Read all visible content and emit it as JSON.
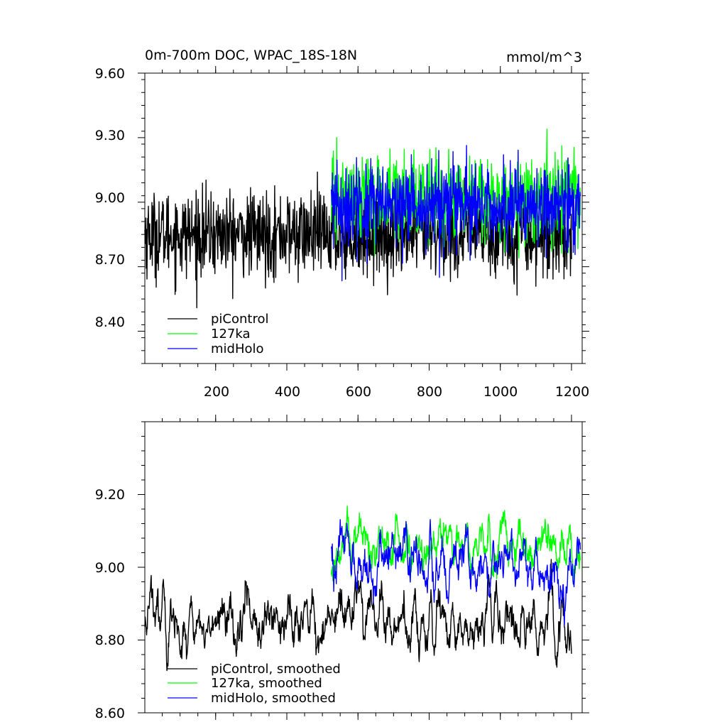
{
  "chart_data": [
    {
      "type": "line",
      "title": "0m-700m DOC, WPAC_18S-18N",
      "units_label": "mmol/m^3",
      "xlim": [
        1,
        1230
      ],
      "ylim": [
        8.25,
        9.6
      ],
      "y_ticks": [
        9.6,
        9.3,
        9.0,
        8.7,
        8.4
      ],
      "y_tick_labels": [
        "9.60",
        "9.30",
        "9.00",
        "8.70",
        "8.40"
      ],
      "x_ticks": [
        200,
        400,
        600,
        800,
        1000,
        1200
      ],
      "x_tick_labels": [
        "200",
        "400",
        "600",
        "800",
        "1000",
        "1200"
      ],
      "series": [
        {
          "name": "piControl",
          "color": "#000000",
          "x_range": [
            1,
            1200
          ],
          "mean": 8.85,
          "spread": 0.13
        },
        {
          "name": "127ka",
          "color": "#00ff00",
          "x_range": [
            525,
            1225
          ],
          "mean": 9.02,
          "spread": 0.13
        },
        {
          "name": "midHolo",
          "color": "#0000ff",
          "x_range": [
            525,
            1225
          ],
          "mean": 8.98,
          "spread": 0.13
        }
      ],
      "legend": [
        "piControl",
        "127ka",
        "midHolo"
      ],
      "legend_position": "bottom-left"
    },
    {
      "type": "line",
      "title": "",
      "xlim": [
        1,
        1230
      ],
      "ylim": [
        8.6,
        9.4
      ],
      "y_ticks": [
        9.2,
        9.0,
        8.8,
        8.6
      ],
      "y_tick_labels": [
        "9.20",
        "9.00",
        "8.80",
        "8.60"
      ],
      "series": [
        {
          "name": "piControl, smoothed",
          "color": "#000000",
          "x_range": [
            1,
            1200
          ],
          "mean": 8.85,
          "spread": 0.06
        },
        {
          "name": "127ka, smoothed",
          "color": "#00ff00",
          "x_range": [
            525,
            1225
          ],
          "mean": 9.06,
          "spread": 0.05
        },
        {
          "name": "midHolo, smoothed",
          "color": "#0000ff",
          "x_range": [
            525,
            1225
          ],
          "mean": 9.0,
          "spread": 0.06
        }
      ],
      "legend": [
        "piControl, smoothed",
        "127ka, smoothed",
        "midHolo, smoothed"
      ],
      "legend_position": "bottom-left"
    }
  ]
}
